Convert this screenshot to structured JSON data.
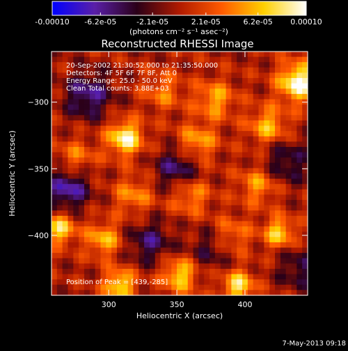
{
  "chart_data": {
    "type": "heatmap",
    "title": "Reconstructed RHESSI Image",
    "xlabel": "Heliocentric X (arcsec)",
    "ylabel": "Heliocentric Y (arcsec)",
    "xlim": [
      258,
      446
    ],
    "ylim": [
      -445,
      -262
    ],
    "xticks": [
      300,
      350,
      400
    ],
    "yticks": [
      -300,
      -350,
      -400
    ],
    "info_lines": [
      "20-Sep-2002 21:30:52.000 to 21:35:50.000",
      "Detectors: 4F 5F 6F 7F 8F, Att 0",
      "Energy Range: 25.0 - 50.0 keV",
      "Clean    Total counts: 3.88E+03"
    ],
    "peak_label": "Position of Peak = [439,-285]",
    "peak": {
      "x": 439,
      "y": -285
    },
    "colorbar": {
      "min": -0.0001,
      "max": 0.0001,
      "tick_values": [
        -0.0001,
        -6.2e-05,
        -2.1e-05,
        2.1e-05,
        6.2e-05,
        0.0001
      ],
      "tick_labels": [
        "-0.00010",
        "-6.2e-05",
        "-2.1e-05",
        "2.1e-05",
        "6.2e-05",
        "0.00010"
      ],
      "units": "(photons cm⁻² s⁻¹ asec⁻²)",
      "colormap": [
        "#0000ff",
        "#5a1fa8",
        "#2a0018",
        "#b01a00",
        "#ff5a00",
        "#ffd000",
        "#ffffff"
      ]
    },
    "grid_info": {
      "nx": 47,
      "ny": 46
    },
    "blobs": [
      {
        "x": 439,
        "y": -285,
        "amp": 1.0,
        "w": 10
      },
      {
        "x": 312,
        "y": -327,
        "amp": 0.92,
        "w": 9
      },
      {
        "x": 264,
        "y": -395,
        "amp": 0.75,
        "w": 8
      },
      {
        "x": 308,
        "y": -437,
        "amp": 0.78,
        "w": 8
      },
      {
        "x": 352,
        "y": -430,
        "amp": 0.72,
        "w": 9
      },
      {
        "x": 395,
        "y": -438,
        "amp": 0.8,
        "w": 8
      },
      {
        "x": 425,
        "y": -398,
        "amp": 0.7,
        "w": 8
      },
      {
        "x": 296,
        "y": -403,
        "amp": 0.6,
        "w": 9
      },
      {
        "x": 378,
        "y": -298,
        "amp": 0.55,
        "w": 10
      },
      {
        "x": 365,
        "y": -330,
        "amp": 0.55,
        "w": 10
      },
      {
        "x": 417,
        "y": -318,
        "amp": 0.6,
        "w": 10
      },
      {
        "x": 410,
        "y": -362,
        "amp": 0.5,
        "w": 10
      },
      {
        "x": 360,
        "y": -370,
        "amp": 0.48,
        "w": 10
      },
      {
        "x": 340,
        "y": -292,
        "amp": 0.4,
        "w": 10
      },
      {
        "x": 276,
        "y": -342,
        "amp": 0.4,
        "w": 10
      },
      {
        "x": 318,
        "y": -370,
        "amp": 0.45,
        "w": 10
      },
      {
        "x": 390,
        "y": -400,
        "amp": 0.42,
        "w": 10
      },
      {
        "x": 285,
        "y": -295,
        "amp": -0.6,
        "w": 12
      },
      {
        "x": 350,
        "y": -350,
        "amp": -0.55,
        "w": 11
      },
      {
        "x": 270,
        "y": -365,
        "amp": -0.7,
        "w": 11
      },
      {
        "x": 430,
        "y": -345,
        "amp": -0.45,
        "w": 12
      },
      {
        "x": 330,
        "y": -405,
        "amp": -0.5,
        "w": 11
      },
      {
        "x": 440,
        "y": -425,
        "amp": -0.4,
        "w": 11
      },
      {
        "x": 375,
        "y": -410,
        "amp": -0.35,
        "w": 11
      }
    ],
    "ripple": 0.22
  },
  "footer": {
    "date": "7-May-2013 09:18"
  }
}
